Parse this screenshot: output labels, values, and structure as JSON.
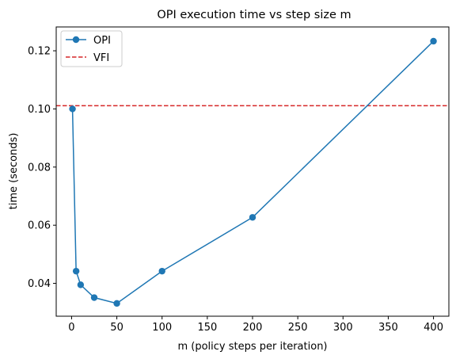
{
  "chart_data": {
    "type": "line",
    "title": "OPI execution time vs step size m",
    "xlabel": "m (policy steps per iteration)",
    "ylabel": "time (seconds)",
    "xlim": [
      -17,
      417
    ],
    "ylim": [
      0.0287,
      0.1282
    ],
    "xticks": [
      0,
      50,
      100,
      150,
      200,
      250,
      300,
      350,
      400
    ],
    "yticks": [
      0.04,
      0.06,
      0.08,
      0.1,
      0.12
    ],
    "xtick_labels": [
      "0",
      "50",
      "100",
      "150",
      "200",
      "250",
      "300",
      "350",
      "400"
    ],
    "ytick_labels": [
      "0.04",
      "0.06",
      "0.08",
      "0.10",
      "0.12"
    ],
    "grid": false,
    "legend_position": "top-left",
    "series": [
      {
        "name": "OPI",
        "color": "#1f77b4",
        "style": "solid-line-with-circle-markers",
        "x": [
          1,
          5,
          10,
          25,
          50,
          100,
          200,
          400
        ],
        "y": [
          0.1,
          0.0442,
          0.0395,
          0.0351,
          0.0331,
          0.0442,
          0.0627,
          0.1233
        ]
      },
      {
        "name": "VFI",
        "color": "#d62728",
        "style": "dashed-horizontal-line",
        "y": 0.1011
      }
    ]
  }
}
